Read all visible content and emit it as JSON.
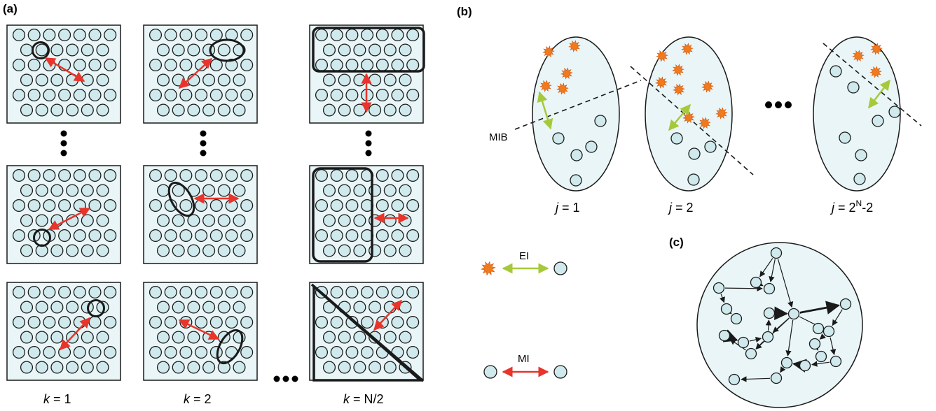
{
  "panels": {
    "a": {
      "label": "(a)",
      "captions": [
        "k = 1",
        "k = 2",
        "k = N/2"
      ],
      "caption_var": "k",
      "caption_values": [
        "1",
        "2",
        "N/2"
      ],
      "ellipsis": "•••"
    },
    "b": {
      "label": "(b)",
      "captions_var": "j",
      "caption_values": [
        "1",
        "2",
        "2N-2"
      ],
      "caption_value_parts": [
        {
          "base": "1"
        },
        {
          "base": "2"
        },
        {
          "base": "2",
          "sup": "N",
          "rest": "-2"
        }
      ],
      "mib_label": "MIB",
      "ellipsis": "•••"
    },
    "c": {
      "label": "(c)"
    },
    "legend": {
      "ei_label": "EI",
      "mi_label": "MI"
    }
  },
  "colors": {
    "node_fill": "#cfe9ec",
    "panel_fill": "#e9f5f7",
    "mi_arrow": "#e8342a",
    "ei_arrow": "#a6c93a",
    "star": "#f07a1e",
    "stroke": "#1a1a1a"
  },
  "icons": {
    "mi": "red-double-arrow",
    "ei": "green-double-arrow",
    "star": "orange-starburst",
    "node": "teal-circle"
  }
}
